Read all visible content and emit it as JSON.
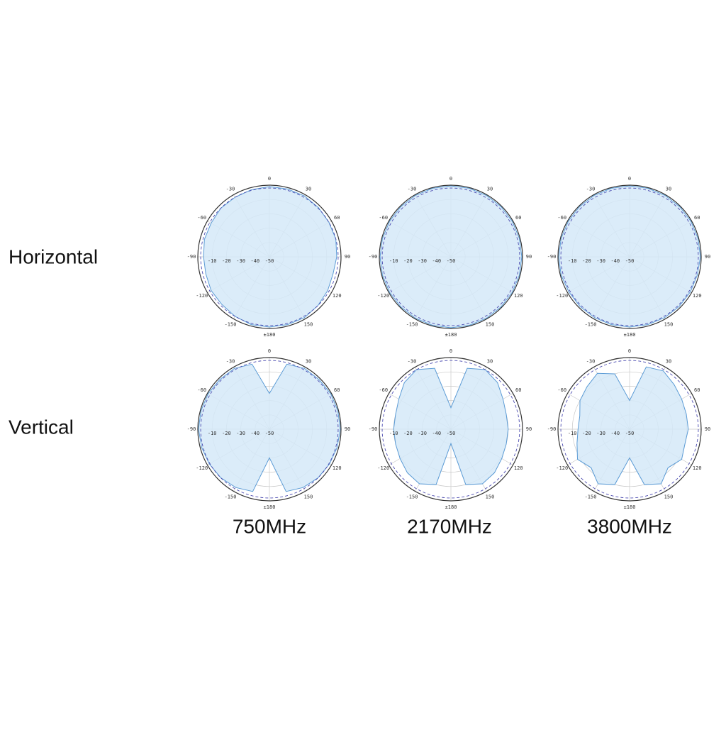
{
  "row_labels": [
    "Horizontal",
    "Vertical"
  ],
  "column_labels": [
    "750MHz",
    "2170MHz",
    "3800MHz"
  ],
  "chart_data": [
    {
      "type": "polar",
      "plane": "Horizontal",
      "frequency": "750MHz",
      "color": "#5b9bd5",
      "rlim": [
        -50,
        0
      ],
      "rticks": [
        -50,
        -40,
        -30,
        -20,
        -10
      ],
      "reference": -2,
      "thetaticks": [
        0,
        30,
        60,
        90,
        120,
        150,
        {
          "value": 180,
          "label": "±180"
        },
        -150,
        -120,
        -90,
        -60,
        -30
      ],
      "theta": [
        0,
        15,
        30,
        45,
        60,
        75,
        90,
        105,
        120,
        135,
        150,
        165,
        180,
        195,
        210,
        225,
        240,
        255,
        270,
        285,
        300,
        315,
        330,
        345
      ],
      "values": [
        -1,
        -1,
        -1,
        -1.5,
        -2,
        -2,
        -3,
        -4,
        -3,
        -2,
        -1,
        -1,
        -1,
        -1,
        -2,
        -3,
        -3,
        -4,
        -4,
        -3,
        -3,
        -2,
        -2,
        -1.5
      ]
    },
    {
      "type": "polar",
      "plane": "Horizontal",
      "frequency": "2170MHz",
      "color": "#5b9bd5",
      "rlim": [
        -50,
        0
      ],
      "rticks": [
        -50,
        -40,
        -30,
        -20,
        -10
      ],
      "reference": -2,
      "thetaticks": [
        0,
        30,
        60,
        90,
        120,
        150,
        {
          "value": 180,
          "label": "±180"
        },
        -150,
        -120,
        -90,
        -60,
        -30
      ],
      "theta": [
        0,
        15,
        30,
        45,
        60,
        75,
        90,
        105,
        120,
        135,
        150,
        165,
        180,
        195,
        210,
        225,
        240,
        255,
        270,
        285,
        300,
        315,
        330,
        345
      ],
      "values": [
        -0.5,
        -0.5,
        -0.5,
        -0.5,
        -0.5,
        -0.5,
        -0.5,
        -0.5,
        -0.5,
        -0.5,
        -0.5,
        -0.5,
        -0.5,
        -0.5,
        -0.5,
        -0.5,
        -0.5,
        -0.5,
        -0.5,
        -0.5,
        -0.5,
        -0.5,
        -0.5,
        -0.5
      ]
    },
    {
      "type": "polar",
      "plane": "Horizontal",
      "frequency": "3800MHz",
      "color": "#5b9bd5",
      "rlim": [
        -50,
        0
      ],
      "rticks": [
        -50,
        -40,
        -30,
        -20,
        -10
      ],
      "reference": -2,
      "thetaticks": [
        0,
        30,
        60,
        90,
        120,
        150,
        {
          "value": 180,
          "label": "±180"
        },
        -150,
        -120,
        -90,
        -60,
        -30
      ],
      "theta": [
        0,
        15,
        30,
        45,
        60,
        75,
        90,
        105,
        120,
        135,
        150,
        165,
        180,
        195,
        210,
        225,
        240,
        255,
        270,
        285,
        300,
        315,
        330,
        345
      ],
      "values": [
        -0.5,
        -0.5,
        -0.5,
        -0.5,
        -0.5,
        -0.5,
        -0.5,
        -1,
        -1,
        -1,
        -1,
        -1,
        -1,
        -1,
        -1,
        -1,
        -1,
        -0.5,
        -0.5,
        -0.5,
        -0.5,
        -0.5,
        -0.5,
        -0.5
      ]
    },
    {
      "type": "polar",
      "plane": "Vertical",
      "frequency": "750MHz",
      "color": "#5b9bd5",
      "rlim": [
        -50,
        0
      ],
      "rticks": [
        -50,
        -40,
        -30,
        -20,
        -10
      ],
      "reference": -2,
      "thetaticks": [
        0,
        30,
        60,
        90,
        120,
        150,
        {
          "value": 180,
          "label": "±180"
        },
        -150,
        -120,
        -90,
        -60,
        -30
      ],
      "theta": [
        0,
        15,
        30,
        45,
        60,
        75,
        90,
        105,
        120,
        135,
        150,
        165,
        180,
        195,
        210,
        225,
        240,
        255,
        270,
        285,
        300,
        315,
        330,
        345
      ],
      "values": [
        -25,
        -3,
        -1,
        -1,
        -0.5,
        -0.5,
        -0.5,
        -1,
        -1.5,
        -2,
        -3,
        -5,
        -30,
        -5,
        -3,
        -2,
        -1.5,
        -1,
        -0.5,
        -0.5,
        -0.5,
        -1,
        -1,
        -3
      ]
    },
    {
      "type": "polar",
      "plane": "Vertical",
      "frequency": "2170MHz",
      "color": "#5b9bd5",
      "rlim": [
        -50,
        0
      ],
      "rticks": [
        -50,
        -40,
        -30,
        -20,
        -10
      ],
      "reference": -2,
      "thetaticks": [
        0,
        30,
        60,
        90,
        120,
        150,
        {
          "value": 180,
          "label": "±180"
        },
        -150,
        -120,
        -90,
        -60,
        -30
      ],
      "theta": [
        0,
        15,
        30,
        45,
        60,
        75,
        90,
        105,
        120,
        135,
        150,
        165,
        180,
        195,
        210,
        225,
        240,
        255,
        270,
        285,
        300,
        315,
        330,
        345
      ],
      "values": [
        -35,
        -6,
        -2,
        -4,
        -8,
        -10,
        -10,
        -10,
        -9,
        -7,
        -6,
        -10,
        -40,
        -10,
        -6,
        -7,
        -9,
        -10,
        -10,
        -10,
        -8,
        -4,
        -2,
        -6
      ]
    },
    {
      "type": "polar",
      "plane": "Vertical",
      "frequency": "3800MHz",
      "color": "#5b9bd5",
      "rlim": [
        -50,
        0
      ],
      "rticks": [
        -50,
        -40,
        -30,
        -20,
        -10
      ],
      "reference": -2,
      "thetaticks": [
        0,
        30,
        60,
        90,
        120,
        150,
        {
          "value": 180,
          "label": "±180"
        },
        -150,
        -120,
        -90,
        -60,
        -30
      ],
      "theta": [
        0,
        15,
        30,
        45,
        60,
        75,
        90,
        105,
        120,
        135,
        150,
        165,
        180,
        195,
        210,
        225,
        240,
        255,
        270,
        285,
        300,
        315,
        330,
        345
      ],
      "values": [
        -30,
        -5,
        -3,
        -6,
        -8,
        -9,
        -9,
        -10,
        -8,
        -12,
        -6,
        -10,
        -30,
        -10,
        -6,
        -12,
        -8,
        -12,
        -14,
        -14,
        -10,
        -8,
        -5,
        -10
      ]
    }
  ]
}
